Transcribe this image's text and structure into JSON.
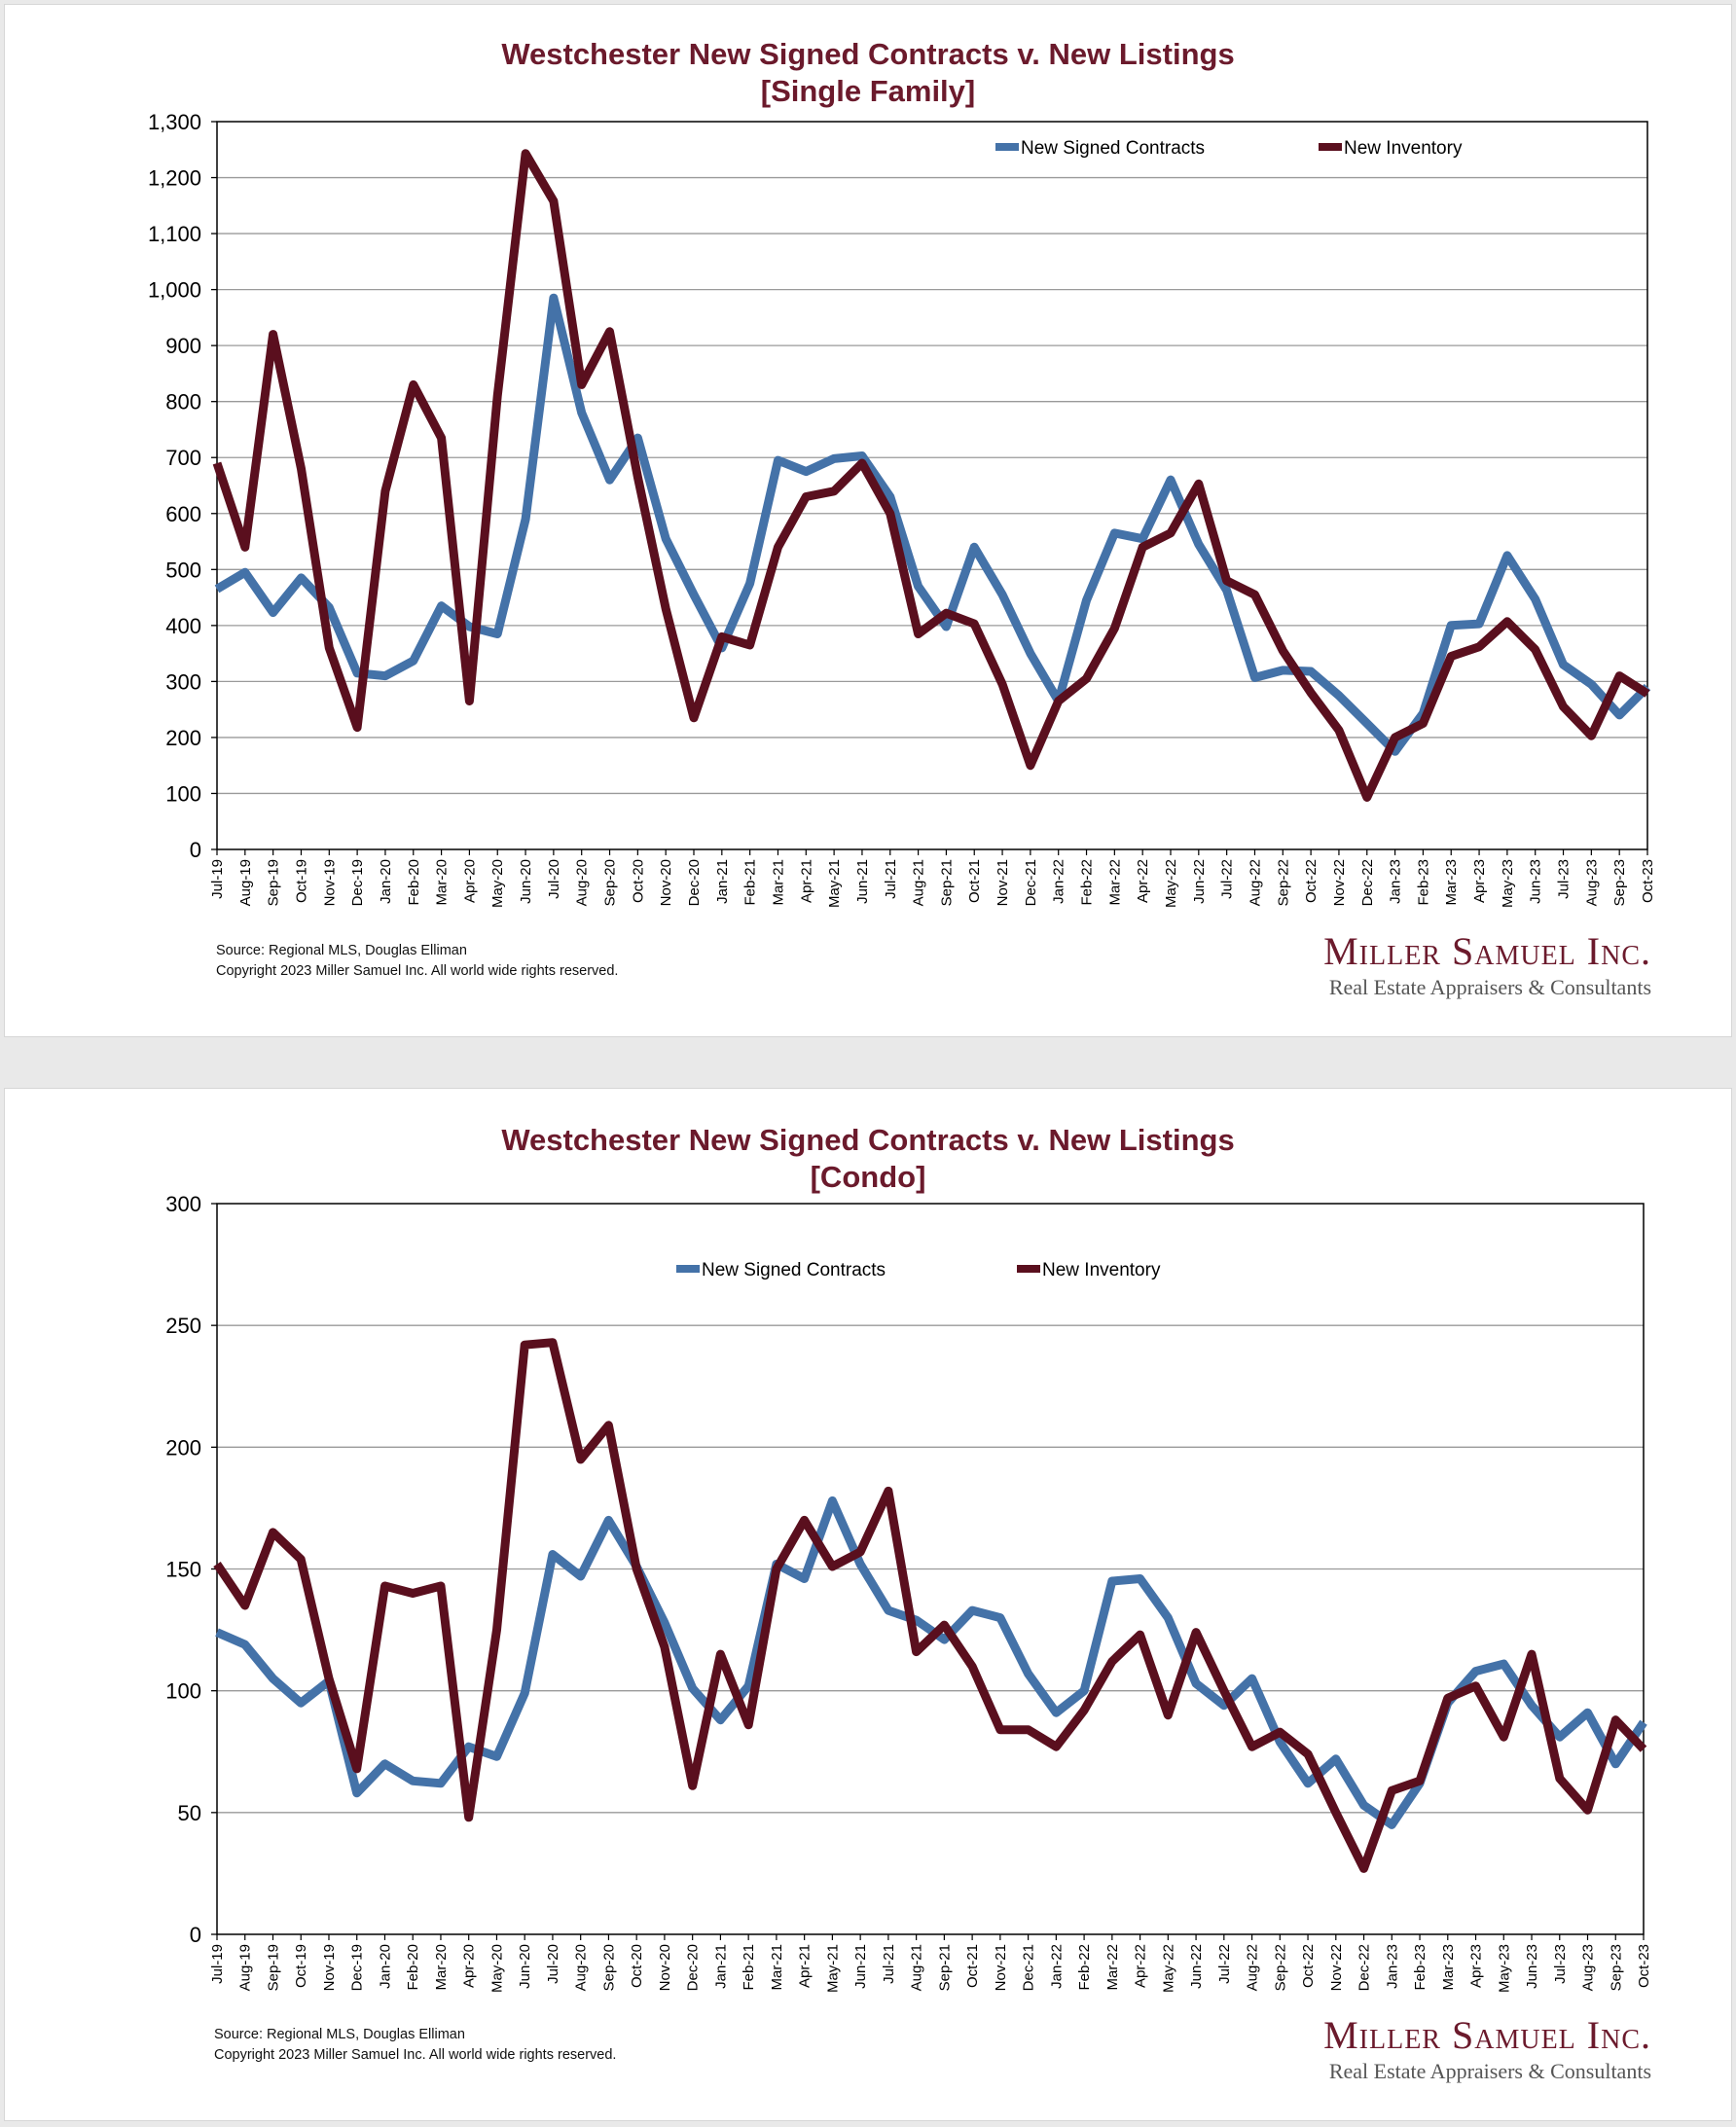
{
  "colors": {
    "contracts": "#4472a8",
    "inventory": "#5a0f1e",
    "title": "#6b1a2c"
  },
  "footer": {
    "source": "Source: Regional MLS, Douglas Elliman",
    "copyright": "Copyright 2023 Miller Samuel Inc.  All world wide rights reserved."
  },
  "logo": {
    "name": "Miller Samuel Inc.",
    "tagline": "Real Estate Appraisers & Consultants"
  },
  "chart_data": [
    {
      "type": "line",
      "title": "Westchester New Signed Contracts v. New Listings",
      "subtitle": "[Single Family]",
      "xlabel": "",
      "ylabel": "",
      "ylim": [
        0,
        1300
      ],
      "yticks": [
        0,
        100,
        200,
        300,
        400,
        500,
        600,
        700,
        800,
        900,
        1000,
        1100,
        1200,
        1300
      ],
      "ytick_labels": [
        "0",
        "100",
        "200",
        "300",
        "400",
        "500",
        "600",
        "700",
        "800",
        "900",
        "1,000",
        "1,100",
        "1,200",
        "1,300"
      ],
      "grid": true,
      "legend": "top-right",
      "categories": [
        "Jul-19",
        "Aug-19",
        "Sep-19",
        "Oct-19",
        "Nov-19",
        "Dec-19",
        "Jan-20",
        "Feb-20",
        "Mar-20",
        "Apr-20",
        "May-20",
        "Jun-20",
        "Jul-20",
        "Aug-20",
        "Sep-20",
        "Oct-20",
        "Nov-20",
        "Dec-20",
        "Jan-21",
        "Feb-21",
        "Mar-21",
        "Apr-21",
        "May-21",
        "Jun-21",
        "Jul-21",
        "Aug-21",
        "Sep-21",
        "Oct-21",
        "Nov-21",
        "Dec-21",
        "Jan-22",
        "Feb-22",
        "Mar-22",
        "Apr-22",
        "May-22",
        "Jun-22",
        "Jul-22",
        "Aug-22",
        "Sep-22",
        "Oct-22",
        "Nov-22",
        "Dec-22",
        "Jan-23",
        "Feb-23",
        "Mar-23",
        "Apr-23",
        "May-23",
        "Jun-23",
        "Jul-23",
        "Aug-23",
        "Sep-23",
        "Oct-23"
      ],
      "series": [
        {
          "name": "New Signed Contracts",
          "color": "#4472a8",
          "values": [
            465,
            495,
            423,
            485,
            432,
            315,
            310,
            337,
            435,
            398,
            385,
            590,
            985,
            780,
            660,
            735,
            555,
            455,
            360,
            475,
            695,
            675,
            698,
            703,
            630,
            470,
            398,
            540,
            455,
            350,
            265,
            445,
            565,
            555,
            660,
            545,
            463,
            307,
            320,
            318,
            275,
            225,
            175,
            243,
            400,
            403,
            525,
            447,
            330,
            295,
            240,
            290
          ]
        },
        {
          "name": "New Inventory",
          "color": "#5a0f1e",
          "values": [
            690,
            540,
            920,
            680,
            360,
            218,
            640,
            830,
            735,
            265,
            810,
            1243,
            1158,
            830,
            925,
            665,
            430,
            235,
            380,
            365,
            540,
            630,
            640,
            690,
            600,
            385,
            422,
            403,
            295,
            150,
            265,
            305,
            395,
            540,
            565,
            653,
            480,
            455,
            355,
            280,
            213,
            93,
            200,
            225,
            345,
            362,
            407,
            357,
            255,
            203,
            310,
            278
          ]
        }
      ]
    },
    {
      "type": "line",
      "title": "Westchester New Signed Contracts v. New Listings",
      "subtitle": "[Condo]",
      "xlabel": "",
      "ylabel": "",
      "ylim": [
        0,
        300
      ],
      "yticks": [
        0,
        50,
        100,
        150,
        200,
        250,
        300
      ],
      "ytick_labels": [
        "0",
        "50",
        "100",
        "150",
        "200",
        "250",
        "300"
      ],
      "grid": true,
      "legend": "top-center",
      "categories": [
        "Jul-19",
        "Aug-19",
        "Sep-19",
        "Oct-19",
        "Nov-19",
        "Dec-19",
        "Jan-20",
        "Feb-20",
        "Mar-20",
        "Apr-20",
        "May-20",
        "Jun-20",
        "Jul-20",
        "Aug-20",
        "Sep-20",
        "Oct-20",
        "Nov-20",
        "Dec-20",
        "Jan-21",
        "Feb-21",
        "Mar-21",
        "Apr-21",
        "May-21",
        "Jun-21",
        "Jul-21",
        "Aug-21",
        "Sep-21",
        "Oct-21",
        "Nov-21",
        "Dec-21",
        "Jan-22",
        "Feb-22",
        "Mar-22",
        "Apr-22",
        "May-22",
        "Jun-22",
        "Jul-22",
        "Aug-22",
        "Sep-22",
        "Oct-22",
        "Nov-22",
        "Dec-22",
        "Jan-23",
        "Feb-23",
        "Mar-23",
        "Apr-23",
        "May-23",
        "Jun-23",
        "Jul-23",
        "Aug-23",
        "Sep-23",
        "Oct-23"
      ],
      "series": [
        {
          "name": "New Signed Contracts",
          "color": "#4472a8",
          "values": [
            124,
            119,
            105,
            95,
            104,
            58,
            70,
            63,
            62,
            77,
            73,
            99,
            156,
            147,
            170,
            151,
            128,
            101,
            88,
            102,
            152,
            146,
            178,
            152,
            133,
            129,
            121,
            133,
            130,
            107,
            91,
            100,
            145,
            146,
            130,
            103,
            94,
            105,
            79,
            62,
            72,
            53,
            45,
            62,
            95,
            108,
            111,
            94,
            81,
            91,
            70,
            87
          ]
        },
        {
          "name": "New Inventory",
          "color": "#5a0f1e",
          "values": [
            152,
            135,
            165,
            154,
            105,
            68,
            143,
            140,
            143,
            48,
            125,
            242,
            243,
            195,
            209,
            150,
            118,
            61,
            115,
            86,
            150,
            170,
            151,
            157,
            182,
            116,
            127,
            110,
            84,
            84,
            77,
            92,
            112,
            123,
            90,
            124,
            100,
            77,
            83,
            74,
            50,
            27,
            59,
            63,
            97,
            102,
            81,
            115,
            64,
            51,
            88,
            76
          ]
        }
      ]
    }
  ]
}
